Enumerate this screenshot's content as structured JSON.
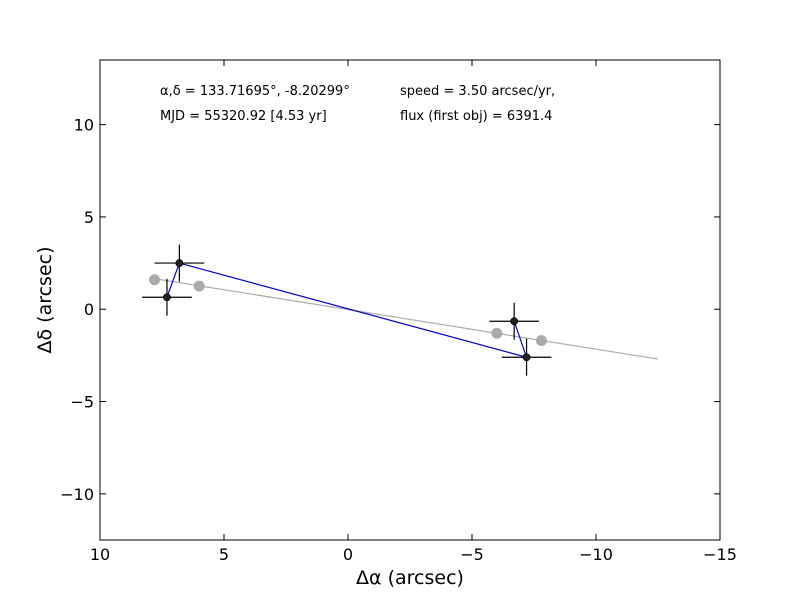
{
  "chart_data": {
    "type": "scatter",
    "title": "",
    "xlabel": "Δα (arcsec)",
    "ylabel": "Δδ (arcsec)",
    "xlim": [
      10,
      -15
    ],
    "ylim": [
      -12.5,
      13.5
    ],
    "xticks": [
      10,
      5,
      0,
      -5,
      -10,
      -15
    ],
    "xtick_labels": [
      "10",
      "5",
      "0",
      "−5",
      "−10",
      "−15"
    ],
    "yticks": [
      10,
      5,
      0,
      -5,
      -10
    ],
    "ytick_labels": [
      "10",
      "5",
      "0",
      "−5",
      "−10"
    ],
    "grid": false,
    "annotations": {
      "coords": "α,δ = 133.71695°, -8.20299°",
      "mjd": "MJD = 55320.92 [4.53 yr]",
      "speed": "speed = 3.50 arcsec/yr,",
      "flux": "flux (first obj) = 6391.4"
    },
    "observed": {
      "color": "#222222",
      "points": [
        {
          "x": 7.3,
          "y": 0.65,
          "xerr": 1.0,
          "yerr": 1.0
        },
        {
          "x": 6.8,
          "y": 2.5,
          "xerr": 1.0,
          "yerr": 1.0
        },
        {
          "x": -6.7,
          "y": -0.65,
          "xerr": 1.0,
          "yerr": 1.0
        },
        {
          "x": -7.2,
          "y": -2.6,
          "xerr": 1.0,
          "yerr": 1.0
        }
      ]
    },
    "observed_path": {
      "color": "#0000cc",
      "points": [
        [
          7.3,
          0.65
        ],
        [
          6.8,
          2.5
        ],
        [
          -7.2,
          -2.6
        ],
        [
          -6.7,
          -0.65
        ]
      ]
    },
    "model_line": {
      "color": "#aaaaaa",
      "x": [
        8.0,
        -12.5
      ],
      "y": [
        1.7,
        -2.7
      ]
    },
    "model_points": {
      "color": "#aaaaaa",
      "points": [
        [
          7.8,
          1.6
        ],
        [
          6.0,
          1.25
        ],
        [
          -6.0,
          -1.3
        ],
        [
          -7.8,
          -1.7
        ]
      ]
    }
  }
}
